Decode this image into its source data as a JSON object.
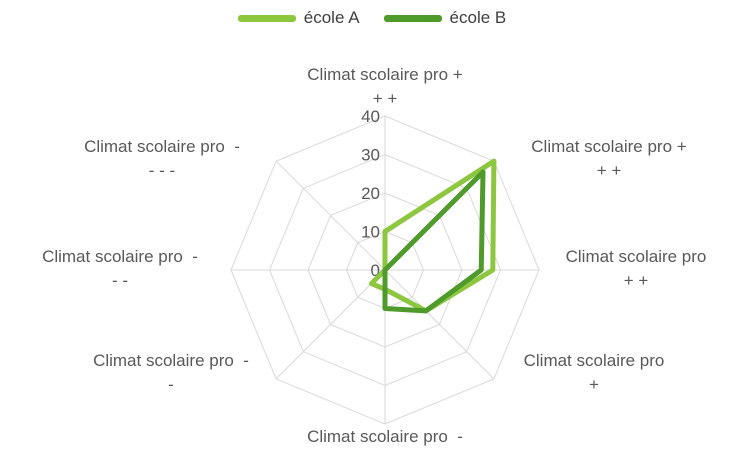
{
  "chart_data": {
    "type": "radar",
    "categories": [
      "Climat scolaire pro +\n+ +",
      "Climat scolaire pro +\n+ +",
      "Climat scolaire pro\n+ +",
      "Climat scolaire pro\n+",
      "Climat scolaire pro  -",
      "Climat scolaire pro  -\n-",
      "Climat scolaire pro  -\n- -",
      "Climat scolaire pro  -\n- - -"
    ],
    "series": [
      {
        "name": "école A",
        "color": "#8DC63F",
        "values": [
          10,
          40,
          28,
          15,
          5,
          5,
          0,
          0
        ]
      },
      {
        "name": "école B",
        "color": "#4E9A2A",
        "values": [
          0,
          36,
          25,
          15,
          10,
          0,
          0,
          0
        ]
      }
    ],
    "ticks": [
      "0",
      "10",
      "20",
      "30",
      "40"
    ],
    "rlim": [
      0,
      40
    ],
    "grid": true,
    "legend_position": "top"
  }
}
